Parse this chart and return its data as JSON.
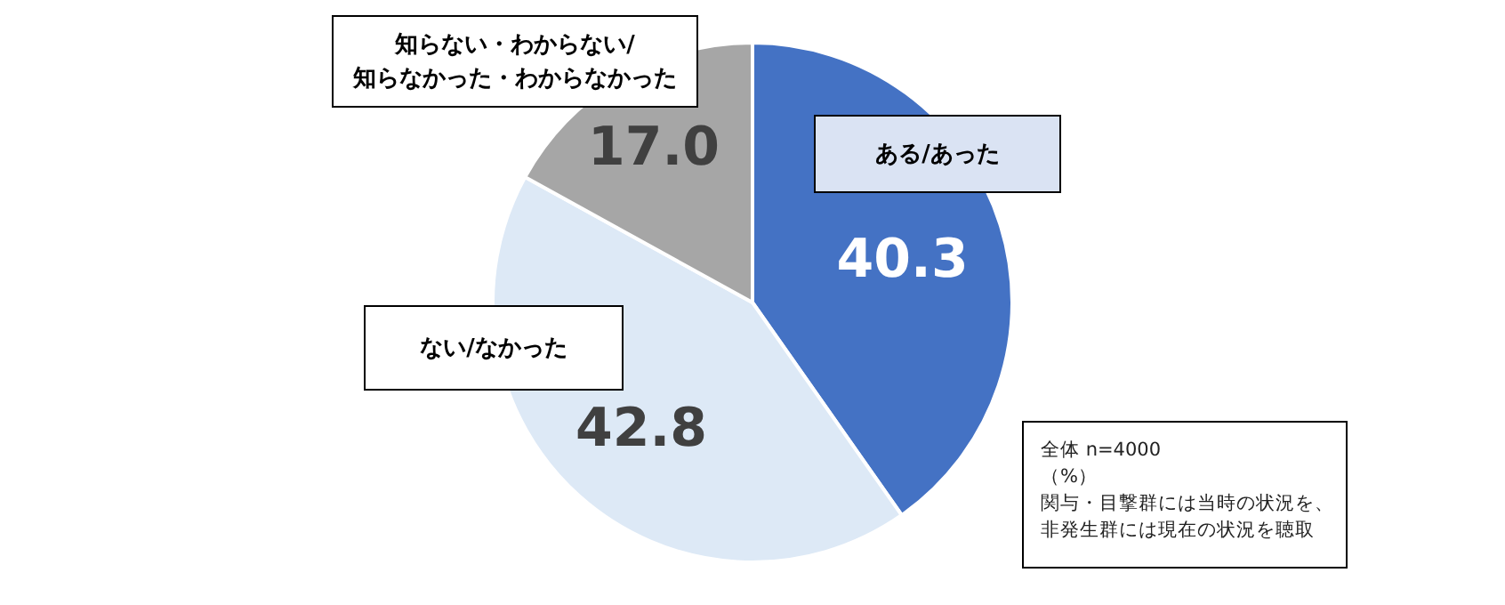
{
  "chart_data": {
    "type": "pie",
    "categories": [
      "ある/あった",
      "ない/なかった",
      "知らない・わからない/\n知らなかった・わからなかった"
    ],
    "values": [
      40.3,
      42.8,
      17.0
    ],
    "colors": [
      "#4472c4",
      "#dde9f6",
      "#a6a6a6"
    ],
    "value_labels": [
      "40.3",
      "42.8",
      "17.0"
    ],
    "annotations": [
      "全体  n=4000",
      "（%）",
      "関与・目撃群には当時の状況を、非発生群には現在の状況を聴取"
    ]
  }
}
